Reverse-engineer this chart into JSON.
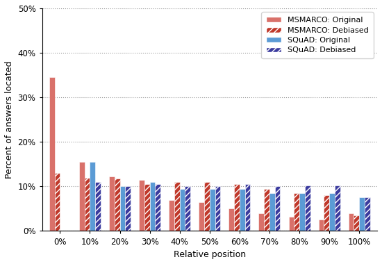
{
  "categories": [
    "0%",
    "10%",
    "20%",
    "30%",
    "40%",
    "50%",
    "60%",
    "70%",
    "80%",
    "90%",
    "100%"
  ],
  "msmarco_original": [
    34.5,
    15.5,
    12.2,
    11.5,
    7.0,
    6.5,
    5.0,
    4.0,
    3.2,
    2.5,
    4.0
  ],
  "msmarco_debiased": [
    13.0,
    12.0,
    11.8,
    10.5,
    11.0,
    11.0,
    10.5,
    9.5,
    8.5,
    8.0,
    3.5
  ],
  "squad_original": [
    0.0,
    15.5,
    10.0,
    11.0,
    9.5,
    9.5,
    9.5,
    8.5,
    8.5,
    8.5,
    7.5
  ],
  "squad_debiased": [
    0.0,
    11.0,
    10.0,
    10.5,
    10.0,
    10.0,
    10.5,
    10.0,
    10.2,
    10.2,
    7.5
  ],
  "msmarco_original_color": "#d9716a",
  "msmarco_debiased_color": "#c0392b",
  "squad_original_color": "#5b9bd5",
  "squad_debiased_color": "#3b3b9e",
  "ylabel": "Percent of answers located",
  "xlabel": "Relative position",
  "ylim": [
    0,
    50
  ],
  "yticks": [
    0,
    10,
    20,
    30,
    40,
    50
  ],
  "legend_labels": [
    "MSMARCO: Original",
    "MSMARCO: Debiased",
    "SQuAD: Original",
    "SQuAD: Debiased"
  ],
  "bar_width": 0.18,
  "figwidth": 5.5,
  "figheight": 3.8,
  "dpi": 100
}
